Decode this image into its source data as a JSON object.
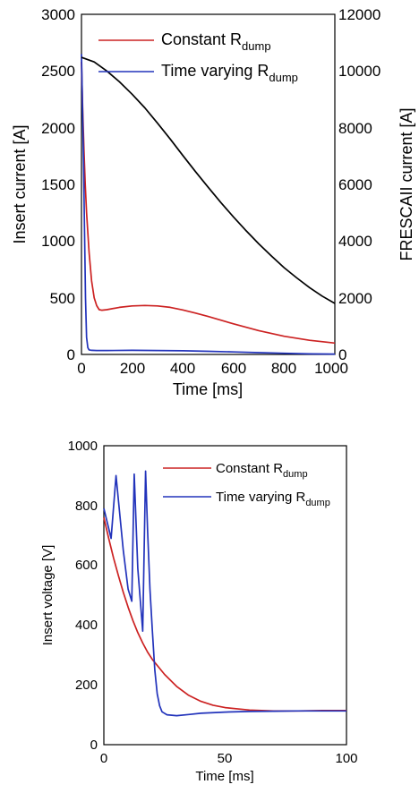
{
  "chart_data": [
    {
      "type": "line",
      "xlabel": "Time [ms]",
      "ylabel": "Insert current [A]",
      "ylabel_right": "FRESCAII current [A]",
      "xlim": [
        0,
        1000
      ],
      "ylim": [
        0,
        3000
      ],
      "ylim_right": [
        0,
        12000
      ],
      "x_ticks": [
        "0",
        "200",
        "400",
        "600",
        "800",
        "1000"
      ],
      "y_ticks": [
        "0",
        "500",
        "1000",
        "1500",
        "2000",
        "2500",
        "3000"
      ],
      "y_ticks_right": [
        "0",
        "2000",
        "4000",
        "6000",
        "8000",
        "10000",
        "12000"
      ],
      "grid": false,
      "legend_position": "top-right",
      "legend": [
        {
          "main": "Constant R",
          "sub": "dump"
        },
        {
          "main": "Time varying R",
          "sub": "dump"
        }
      ],
      "series": [
        {
          "name": "Constant Rdump",
          "color": "#cc2222",
          "axis": "left",
          "x": [
            0,
            5,
            10,
            15,
            20,
            30,
            40,
            50,
            60,
            70,
            80,
            100,
            150,
            200,
            250,
            300,
            350,
            400,
            450,
            500,
            600,
            700,
            800,
            900,
            1000
          ],
          "y": [
            2580,
            2150,
            1800,
            1500,
            1250,
            900,
            650,
            500,
            430,
            395,
            390,
            395,
            415,
            428,
            432,
            428,
            415,
            392,
            365,
            335,
            270,
            210,
            160,
            125,
            100
          ]
        },
        {
          "name": "Time varying Rdump",
          "color": "#2233bb",
          "axis": "left",
          "x": [
            0,
            4,
            8,
            12,
            16,
            20,
            25,
            30,
            40,
            60,
            100,
            200,
            300,
            400,
            500,
            600,
            700,
            800,
            900,
            1000
          ],
          "y": [
            2650,
            2200,
            1700,
            1100,
            500,
            150,
            60,
            40,
            36,
            35,
            35,
            36,
            35,
            32,
            28,
            22,
            16,
            10,
            5,
            3
          ]
        },
        {
          "name": "FRESCAII current",
          "color": "#000000",
          "axis": "right",
          "x": [
            0,
            50,
            100,
            150,
            200,
            250,
            300,
            350,
            400,
            450,
            500,
            550,
            600,
            650,
            700,
            750,
            800,
            850,
            900,
            950,
            1000
          ],
          "y": [
            10480,
            10320,
            10000,
            9620,
            9180,
            8700,
            8160,
            7600,
            7020,
            6450,
            5900,
            5360,
            4850,
            4360,
            3900,
            3470,
            3060,
            2700,
            2360,
            2060,
            1800
          ]
        }
      ]
    },
    {
      "type": "line",
      "xlabel": "Time [ms]",
      "ylabel": "Insert voltage [V]",
      "xlim": [
        0,
        100
      ],
      "ylim": [
        0,
        1000
      ],
      "x_ticks": [
        "0",
        "50",
        "100"
      ],
      "y_ticks": [
        "0",
        "200",
        "400",
        "600",
        "800",
        "1000"
      ],
      "grid": false,
      "legend_position": "top-right",
      "legend": [
        {
          "main": "Constant R",
          "sub": "dump"
        },
        {
          "main": "Time varying R",
          "sub": "dump"
        }
      ],
      "series": [
        {
          "name": "Constant Rdump",
          "color": "#cc2222",
          "x": [
            0,
            2,
            4,
            6,
            8,
            10,
            12,
            14,
            16,
            18,
            20,
            25,
            30,
            35,
            40,
            45,
            50,
            60,
            70,
            80,
            90,
            100
          ],
          "y": [
            760,
            690,
            625,
            565,
            510,
            460,
            415,
            375,
            340,
            310,
            285,
            235,
            195,
            165,
            145,
            132,
            124,
            116,
            113,
            113,
            114,
            114
          ],
          "upto": 100
        },
        {
          "name": "Time varying Rdump",
          "color": "#2233bb",
          "x": [
            0,
            3,
            5,
            8,
            10,
            11.5,
            12.5,
            14,
            16,
            17.2,
            18,
            19,
            20,
            21,
            22,
            23,
            24,
            26,
            30,
            35,
            40,
            50,
            60,
            70,
            80,
            90,
            100
          ],
          "y": [
            790,
            690,
            900,
            650,
            520,
            480,
            905,
            590,
            380,
            915,
            720,
            520,
            380,
            250,
            170,
            130,
            110,
            100,
            97,
            101,
            105,
            109,
            111,
            112,
            113,
            113,
            113
          ]
        }
      ]
    }
  ]
}
